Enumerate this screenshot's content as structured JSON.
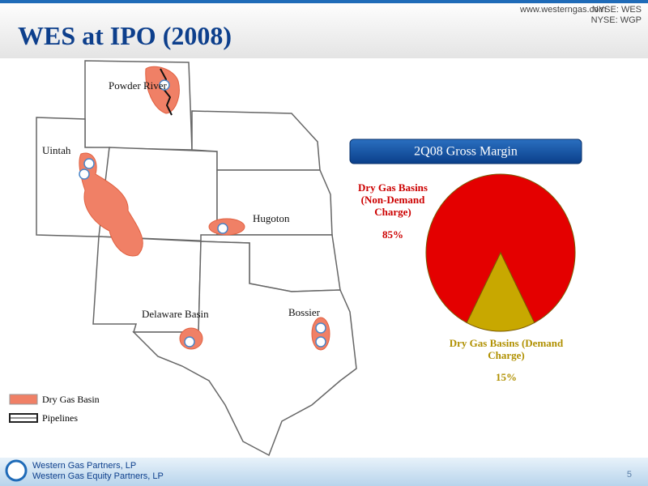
{
  "header": {
    "website": "www.westerngas.com",
    "ticker_1": "NYSE: WES",
    "ticker_2": "NYSE: WGP",
    "title": "WES at IPO (2008)"
  },
  "map": {
    "labels": [
      "Powder River",
      "Uintah",
      "Hugoton",
      "Delaware Basin",
      "Bossier"
    ]
  },
  "legend": [
    "Dry Gas Basin",
    "Pipelines"
  ],
  "chart_data": {
    "type": "pie",
    "title": "2Q08 Gross Margin",
    "categories": [
      "Dry Gas Basins (Non-Demand Charge)",
      "Dry Gas Basins (Demand Charge)"
    ],
    "values": [
      85,
      15
    ],
    "value_labels": [
      "85%",
      "15%"
    ],
    "colors": [
      "#e40000",
      "#c8a800"
    ],
    "label_colors": [
      "#cc0000",
      "#b09000"
    ]
  },
  "footer": {
    "company_1": "Western Gas Partners, LP",
    "company_2": "Western Gas Equity Partners, LP",
    "page": "5"
  }
}
